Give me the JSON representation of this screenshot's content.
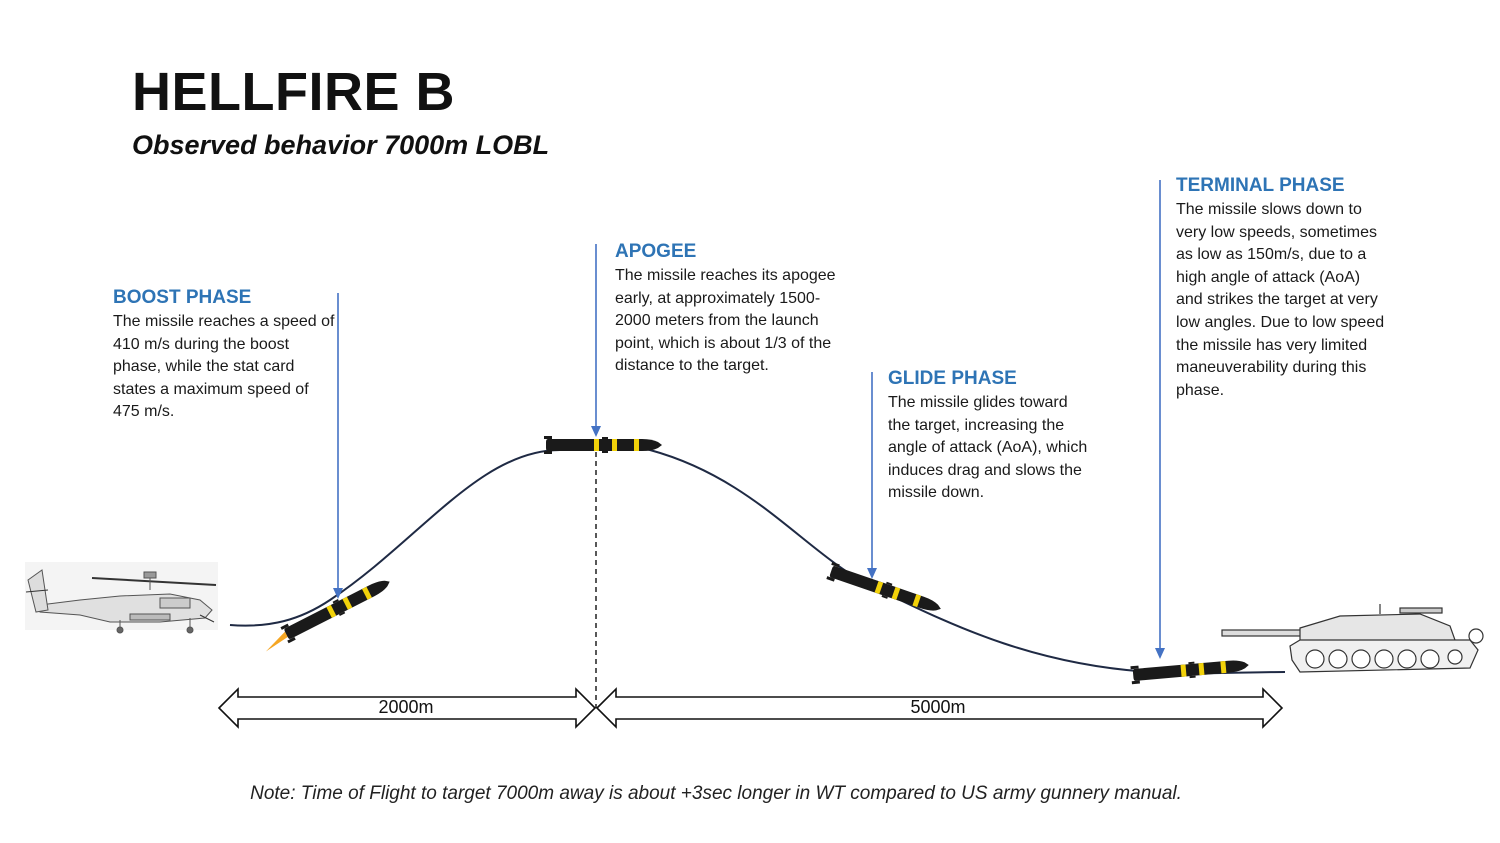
{
  "header": {
    "title": "HELLFIRE B",
    "subtitle": "Observed behavior 7000m LOBL"
  },
  "phases": {
    "boost": {
      "heading": "BOOST PHASE",
      "text": "The missile reaches a speed of 410 m/s during the boost phase, while the stat card states a maximum speed of 475 m/s."
    },
    "apogee": {
      "heading": "APOGEE",
      "text": "The missile reaches its apogee early, at approximately 1500-2000 meters from the launch point, which is about 1/3 of the distance to the target."
    },
    "glide": {
      "heading": "GLIDE PHASE",
      "text": "The missile glides toward the target, increasing the angle of attack (AoA), which induces drag and slows the missile down."
    },
    "terminal": {
      "heading": "TERMINAL PHASE",
      "text": "The missile slows down to very low speeds, sometimes as low as 150m/s, due to a high angle of attack (AoA) and strikes the target at very low angles. Due to low speed the missile has very limited maneuverability during this phase."
    }
  },
  "distances": {
    "first": "2000m",
    "second": "5000m"
  },
  "note": "Note: Time of Flight to target 7000m away is about +3sec longer in WT compared to US army gunnery manual.",
  "colors": {
    "heading_blue": "#2e74b5",
    "pointer_blue": "#4472c4",
    "trajectory": "#1f2a44",
    "missile_body": "#1a1a1a",
    "missile_band": "#f2d20a",
    "exhaust": "#f5a623"
  },
  "icons": {
    "launcher": "attack-helicopter-icon",
    "target": "tank-icon",
    "projectile": "missile-icon"
  }
}
